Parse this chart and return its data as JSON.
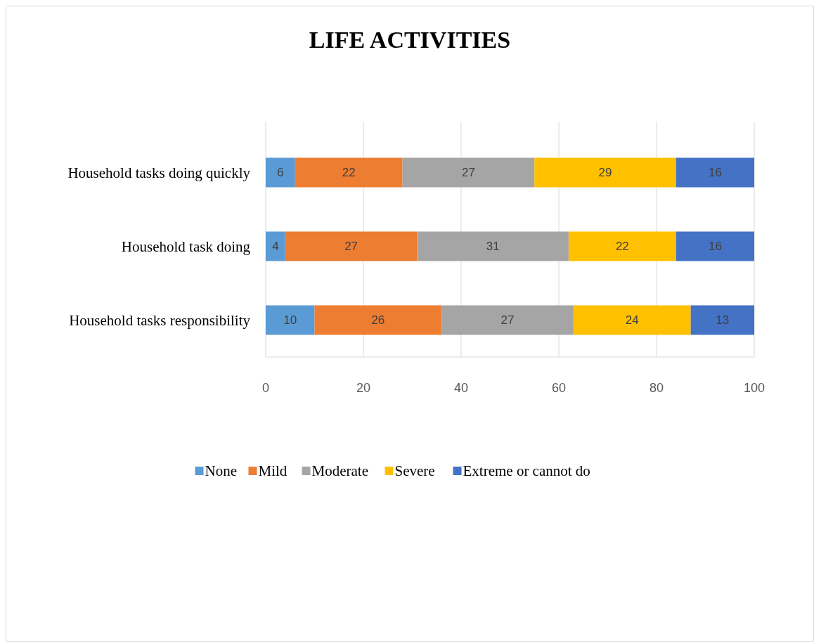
{
  "chart_data": {
    "type": "bar",
    "title": "LIFE ACTIVITIES",
    "orientation": "horizontal",
    "stacked": true,
    "categories": [
      "Household tasks doing quickly",
      "Household task doing",
      "Household tasks responsibility"
    ],
    "series": [
      {
        "name": "None",
        "color": "#5b9bd5",
        "values": [
          6,
          4,
          10
        ]
      },
      {
        "name": "Mild",
        "color": "#ed7d31",
        "values": [
          22,
          27,
          26
        ]
      },
      {
        "name": "Moderate",
        "color": "#a5a5a5",
        "values": [
          27,
          31,
          27
        ]
      },
      {
        "name": "Severe",
        "color": "#ffc000",
        "values": [
          29,
          22,
          24
        ]
      },
      {
        "name": "Extreme or cannot do",
        "color": "#4472c4",
        "values": [
          16,
          16,
          13
        ]
      }
    ],
    "xlim": [
      0,
      100
    ],
    "xticks": [
      0,
      20,
      40,
      60,
      80,
      100
    ],
    "grid": "x",
    "legend": "bottom",
    "data_labels": true
  }
}
